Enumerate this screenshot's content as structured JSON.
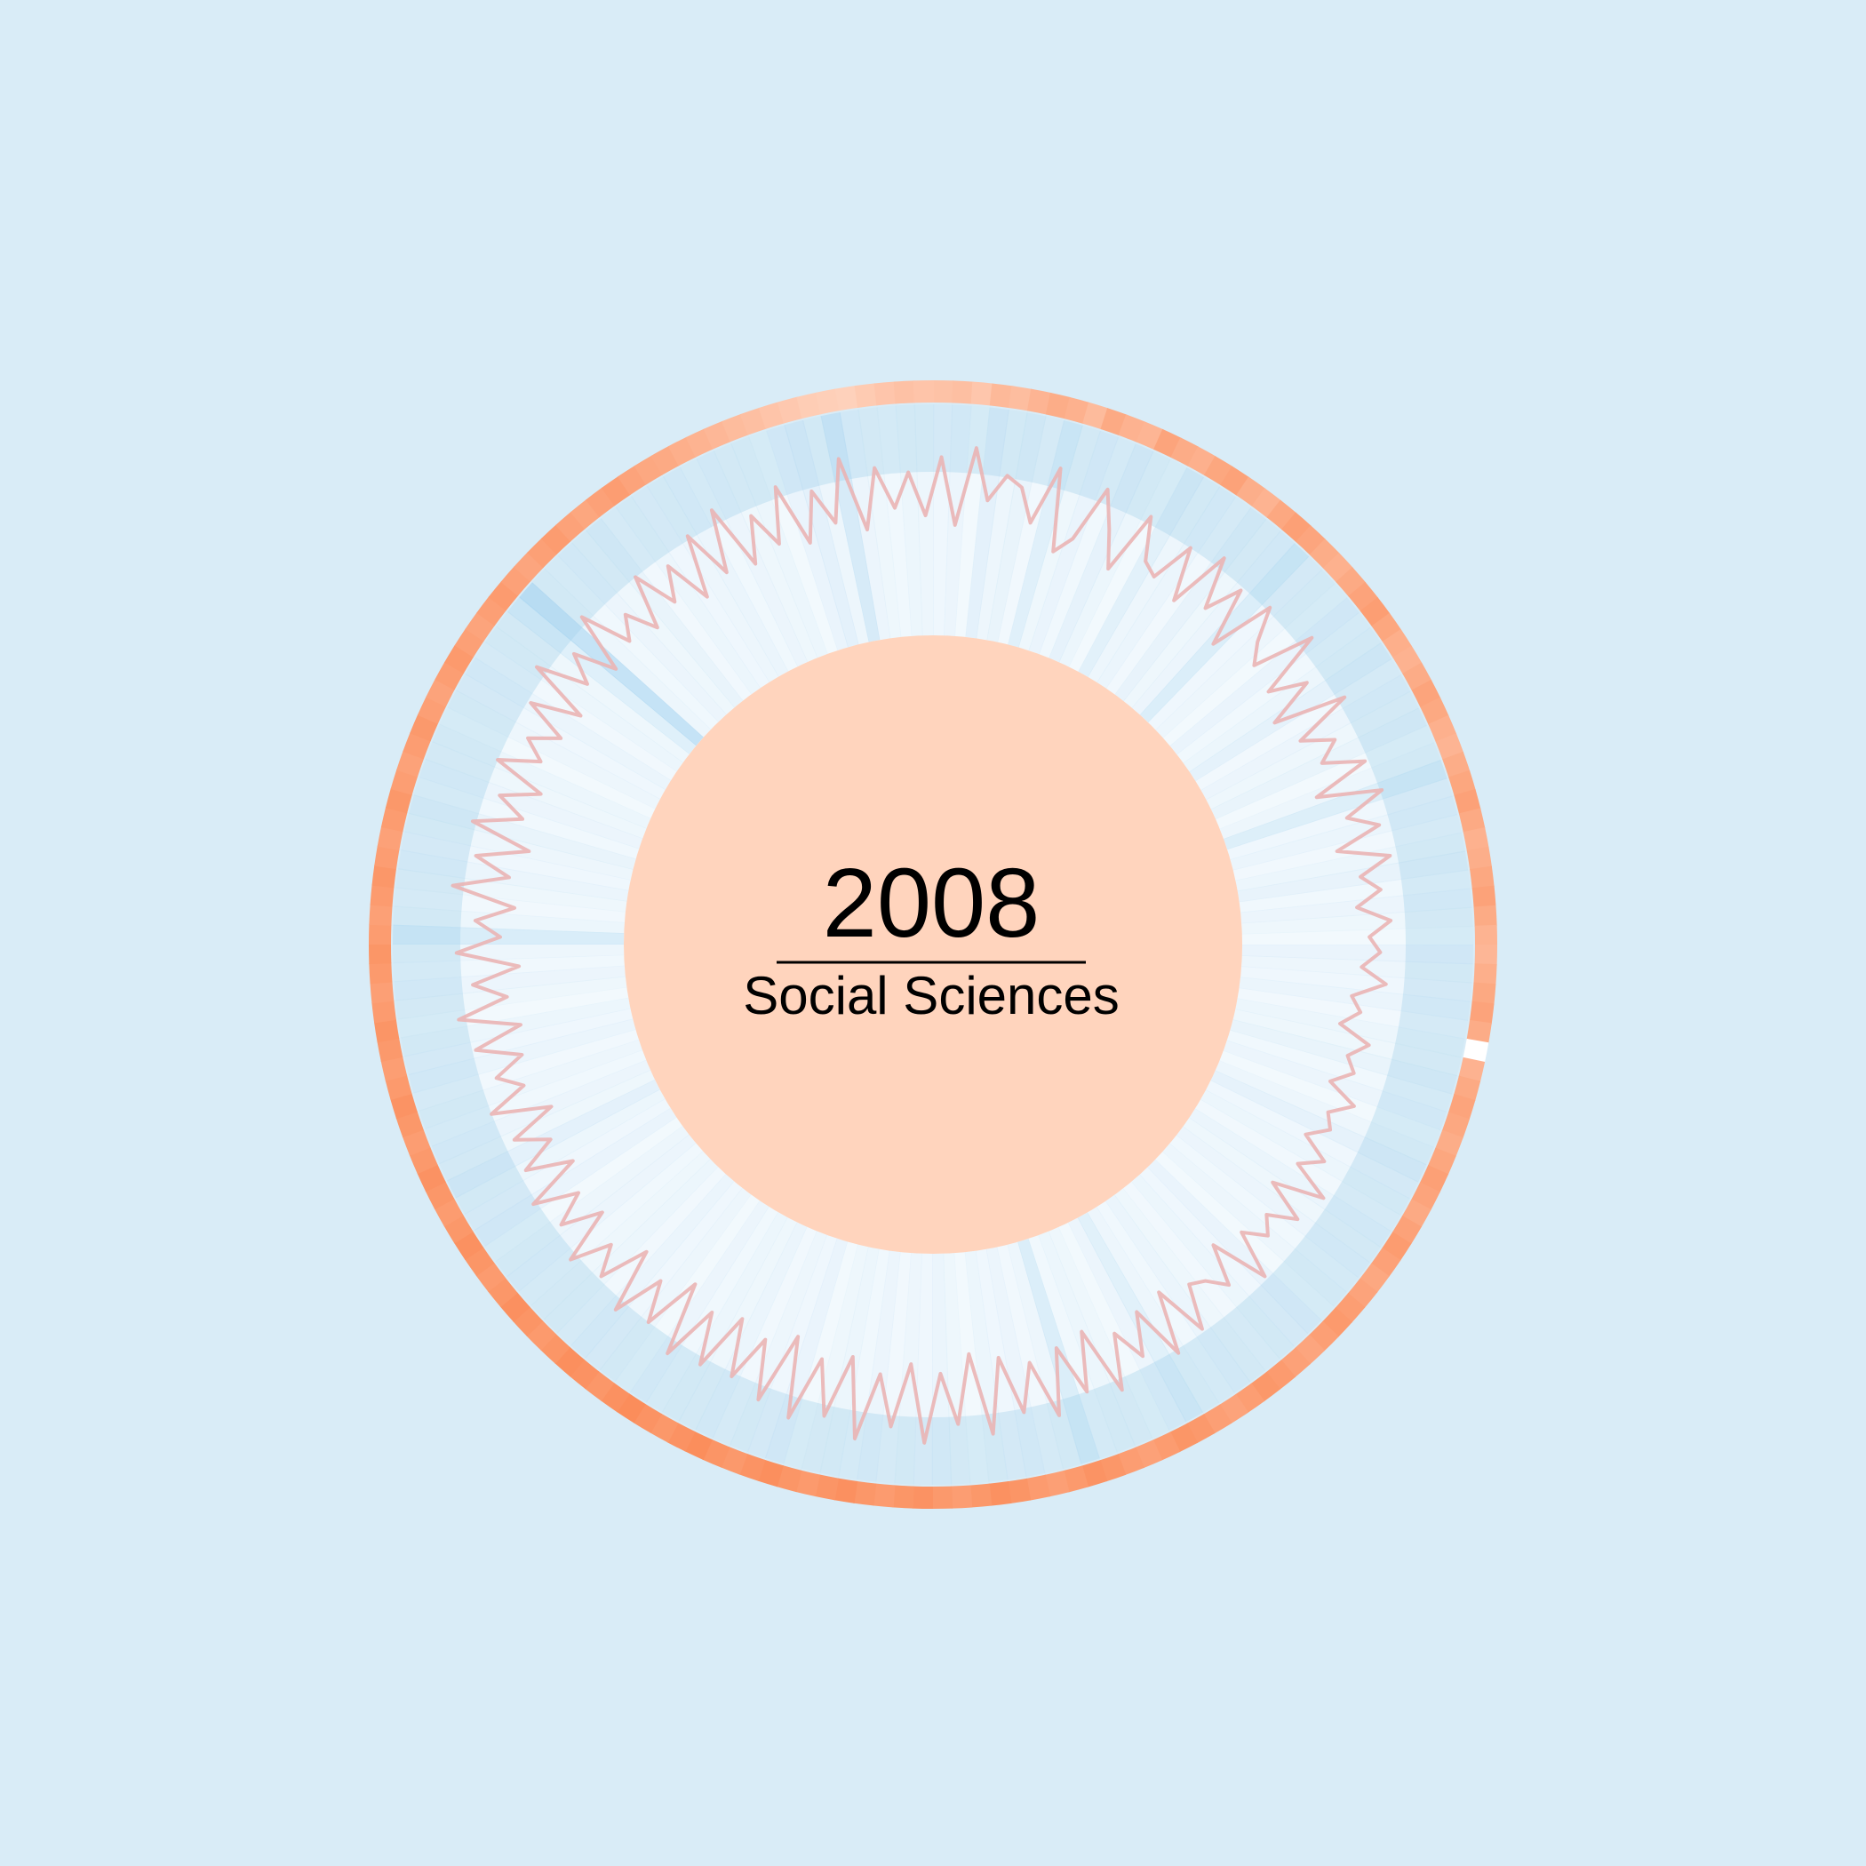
{
  "chart_data": {
    "type": "radial-area",
    "title": "2008",
    "subtitle": "Social Sciences",
    "segments": 180,
    "outer_ring_intensity": [
      0.32,
      0.35,
      0.28,
      0.41,
      0.37,
      0.45,
      0.52,
      0.48,
      0.39,
      0.55,
      0.47,
      0.44,
      0.6,
      0.53,
      0.49,
      0.58,
      0.62,
      0.51,
      0.46,
      0.57,
      0.64,
      0.59,
      0.52,
      0.48,
      0.55,
      0.61,
      0.66,
      0.58,
      0.5,
      0.47,
      0.53,
      0.6,
      0.56,
      0.49,
      0.45,
      0.52,
      0.58,
      0.63,
      0.55,
      0.48,
      0.51,
      0.57,
      0.62,
      0.54,
      0.46,
      0.43,
      0.5,
      0.56,
      0.61,
      0.53,
      0.0,
      0.47,
      0.55,
      0.6,
      0.57,
      0.52,
      0.58,
      0.64,
      0.6,
      0.55,
      0.62,
      0.68,
      0.63,
      0.57,
      0.61,
      0.66,
      0.7,
      0.65,
      0.59,
      0.63,
      0.69,
      0.72,
      0.66,
      0.61,
      0.65,
      0.71,
      0.74,
      0.68,
      0.63,
      0.67,
      0.73,
      0.76,
      0.7,
      0.65,
      0.69,
      0.75,
      0.78,
      0.72,
      0.67,
      0.71,
      0.77,
      0.74,
      0.69,
      0.73,
      0.79,
      0.75,
      0.7,
      0.74,
      0.8,
      0.76,
      0.71,
      0.75,
      0.81,
      0.77,
      0.72,
      0.76,
      0.82,
      0.78,
      0.73,
      0.77,
      0.8,
      0.74,
      0.7,
      0.75,
      0.79,
      0.73,
      0.69,
      0.74,
      0.78,
      0.72,
      0.68,
      0.73,
      0.77,
      0.71,
      0.67,
      0.72,
      0.76,
      0.7,
      0.66,
      0.71,
      0.75,
      0.69,
      0.65,
      0.7,
      0.74,
      0.68,
      0.64,
      0.69,
      0.73,
      0.67,
      0.63,
      0.68,
      0.72,
      0.66,
      0.62,
      0.67,
      0.71,
      0.65,
      0.61,
      0.66,
      0.7,
      0.64,
      0.6,
      0.65,
      0.69,
      0.63,
      0.59,
      0.64,
      0.68,
      0.62,
      0.58,
      0.63,
      0.67,
      0.61,
      0.57,
      0.55,
      0.5,
      0.46,
      0.42,
      0.38,
      0.35,
      0.3,
      0.26,
      0.22,
      0.2,
      0.18,
      0.24,
      0.29,
      0.33,
      0.3
    ],
    "inner_band_intensity": [
      0.08,
      0.12,
      0.05,
      0.2,
      0.1,
      0.15,
      0.06,
      0.25,
      0.09,
      0.14,
      0.07,
      0.18,
      0.11,
      0.05,
      0.22,
      0.1,
      0.13,
      0.06,
      0.16,
      0.09,
      0.12,
      0.3,
      0.08,
      0.1,
      0.05,
      0.14,
      0.07,
      0.11,
      0.19,
      0.06,
      0.12,
      0.09,
      0.15,
      0.05,
      0.1,
      0.28,
      0.08,
      0.13,
      0.06,
      0.11,
      0.16,
      0.07,
      0.12,
      0.09,
      0.05,
      0.14,
      0.1,
      0.08,
      0.13,
      0.06,
      0.11,
      0.09,
      0.15,
      0.07,
      0.12,
      0.05,
      0.1,
      0.18,
      0.08,
      0.11,
      0.06,
      0.13,
      0.09,
      0.12,
      0.07,
      0.1,
      0.05,
      0.14,
      0.08,
      0.11,
      0.06,
      0.09,
      0.13,
      0.07,
      0.1,
      0.24,
      0.12,
      0.05,
      0.09,
      0.11,
      0.07,
      0.3,
      0.1,
      0.06,
      0.12,
      0.08,
      0.11,
      0.05,
      0.09,
      0.13,
      0.08,
      0.1,
      0.06,
      0.12,
      0.07,
      0.11,
      0.09,
      0.05,
      0.14,
      0.08,
      0.1,
      0.06,
      0.13,
      0.09,
      0.11,
      0.07,
      0.12,
      0.05,
      0.1,
      0.08,
      0.13,
      0.06,
      0.11,
      0.09,
      0.07,
      0.12,
      0.1,
      0.05,
      0.14,
      0.08,
      0.11,
      0.2,
      0.09,
      0.12,
      0.07,
      0.1,
      0.06,
      0.13,
      0.08,
      0.11,
      0.05,
      0.09,
      0.12,
      0.07,
      0.1,
      0.32,
      0.11,
      0.06,
      0.09,
      0.13,
      0.08,
      0.1,
      0.15,
      0.07,
      0.12,
      0.09,
      0.11,
      0.05,
      0.1,
      0.08,
      0.13,
      0.06,
      0.11,
      0.09,
      0.26,
      0.55,
      0.1,
      0.07,
      0.12,
      0.09,
      0.15,
      0.06,
      0.11,
      0.08,
      0.1,
      0.13,
      0.07,
      0.12,
      0.09,
      0.11,
      0.05,
      0.14,
      0.2,
      0.1,
      0.35,
      0.12,
      0.09,
      0.07,
      0.11,
      0.1
    ],
    "line_values": [
      0.92,
      0.55,
      0.98,
      0.7,
      0.85,
      0.8,
      0.62,
      0.95,
      0.5,
      0.6,
      0.92,
      0.72,
      0.52,
      0.88,
      0.65,
      0.6,
      0.84,
      0.55,
      0.9,
      0.62,
      0.82,
      0.5,
      0.86,
      0.68,
      0.58,
      0.92,
      0.55,
      0.75,
      0.48,
      0.88,
      0.55,
      0.72,
      0.6,
      0.82,
      0.5,
      0.85,
      0.62,
      0.78,
      0.52,
      0.8,
      0.62,
      0.72,
      0.58,
      0.76,
      0.64,
      0.7,
      0.6,
      0.74,
      0.56,
      0.62,
      0.52,
      0.7,
      0.6,
      0.66,
      0.55,
      0.72,
      0.6,
      0.65,
      0.54,
      0.7,
      0.58,
      0.8,
      0.52,
      0.75,
      0.6,
      0.68,
      0.56,
      0.82,
      0.5,
      0.72,
      0.62,
      0.58,
      0.82,
      0.52,
      0.86,
      0.55,
      0.78,
      0.6,
      0.9,
      0.52,
      0.84,
      0.56,
      0.92,
      0.6,
      0.86,
      0.54,
      0.95,
      0.5,
      0.88,
      0.6,
      0.98,
      0.55,
      0.9,
      0.62,
      0.99,
      0.55,
      0.9,
      0.6,
      0.96,
      0.52,
      0.92,
      0.6,
      0.86,
      0.55,
      0.88,
      0.6,
      0.92,
      0.52,
      0.84,
      0.62,
      0.9,
      0.55,
      0.82,
      0.66,
      0.88,
      0.58,
      0.8,
      0.62,
      0.86,
      0.55,
      0.8,
      0.6,
      0.78,
      0.52,
      0.84,
      0.62,
      0.75,
      0.58,
      0.82,
      0.55,
      0.88,
      0.6,
      0.78,
      0.52,
      0.86,
      0.62,
      0.76,
      0.55,
      0.9,
      0.6,
      0.8,
      0.52,
      0.86,
      0.6,
      0.76,
      0.55,
      0.84,
      0.62,
      0.74,
      0.58,
      0.82,
      0.55,
      0.9,
      0.62,
      0.78,
      0.55,
      0.88,
      0.6,
      0.72,
      0.55,
      0.84,
      0.6,
      0.78,
      0.52,
      0.86,
      0.58,
      0.92,
      0.55,
      0.8,
      0.6,
      0.9,
      0.55,
      0.82,
      0.62,
      0.96,
      0.55,
      0.88,
      0.65,
      0.84,
      0.6
    ],
    "colors": {
      "background": "#d9ecf7",
      "center_fill": "#ffd4bd",
      "outer_ring_low": "#ffe4d6",
      "outer_ring_high": "#fa7a40",
      "band_fill": "#f7fbfe",
      "band_ray": "#9ccfee",
      "line": "#eab4b4",
      "divider": "#000000",
      "text": "#000000"
    }
  }
}
